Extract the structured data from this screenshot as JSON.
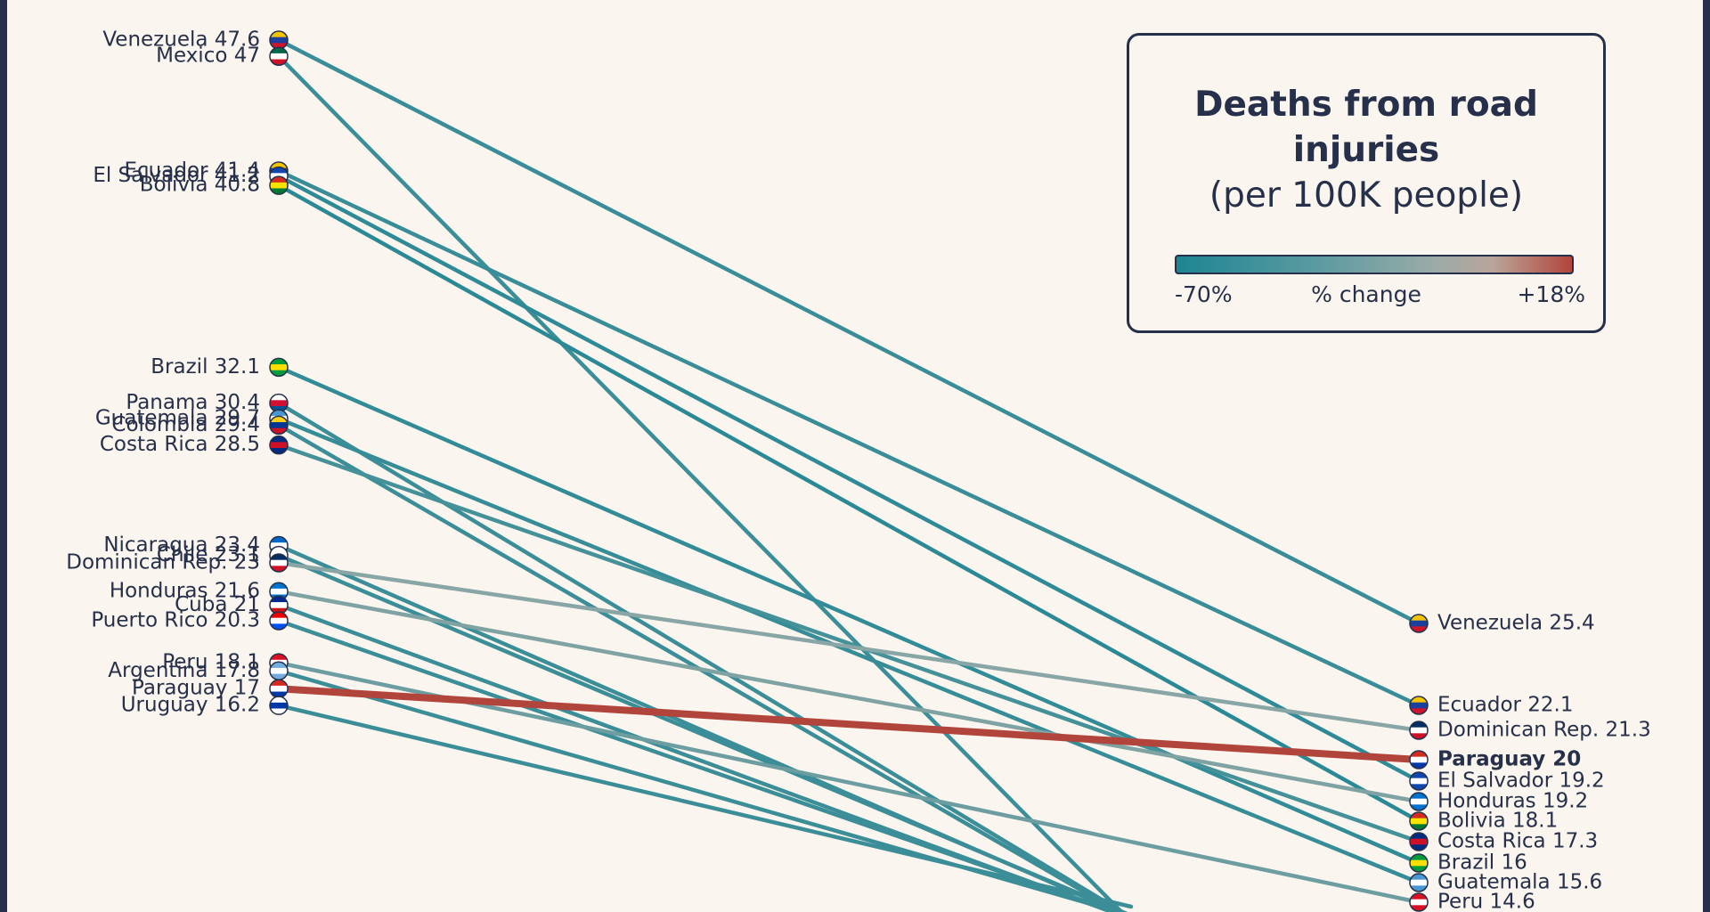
{
  "chart_data": {
    "type": "slope",
    "title": "Deaths from road injuries",
    "subtitle": "(per 100K people)",
    "legend": {
      "min_label": "-70%",
      "center_label": "% change",
      "max_label": "+18%",
      "color_low": "#1d8593",
      "color_mid": "#9aaba8",
      "color_high": "#b2453b"
    },
    "y_range": [
      13.6,
      49.3
    ],
    "highlight": "Paraguay",
    "series": [
      {
        "name": "Venezuela",
        "start": 47.6,
        "end": 25.4,
        "start_label": "Venezuela 47.6",
        "end_label": "Venezuela 25.4"
      },
      {
        "name": "Mexico",
        "start": 47,
        "end": null,
        "start_label": "Mexico 47",
        "end_label": ""
      },
      {
        "name": "Ecuador",
        "start": 41.4,
        "end": 22.1,
        "start_label": "Ecuador 41.4",
        "end_label": "Ecuador 22.1"
      },
      {
        "name": "El Salvador",
        "start": 41.2,
        "end": 19.2,
        "start_label": "El Salvador 41.2",
        "end_label": "El Salvador 19.2"
      },
      {
        "name": "Bolivia",
        "start": 40.8,
        "end": 18.1,
        "start_label": "Bolivia 40.8",
        "end_label": "Bolivia 18.1"
      },
      {
        "name": "Brazil",
        "start": 32.1,
        "end": 16,
        "start_label": "Brazil 32.1",
        "end_label": "Brazil 16"
      },
      {
        "name": "Panama",
        "start": 30.4,
        "end": null,
        "start_label": "Panama 30.4",
        "end_label": ""
      },
      {
        "name": "Guatemala",
        "start": 29.7,
        "end": 15.6,
        "start_label": "Guatemala 29.7",
        "end_label": "Guatemala 15.6"
      },
      {
        "name": "Colombia",
        "start": 29.4,
        "end": null,
        "start_label": "Colombia 29.4",
        "end_label": ""
      },
      {
        "name": "Costa Rica",
        "start": 28.5,
        "end": 17.3,
        "start_label": "Costa Rica 28.5",
        "end_label": "Costa Rica 17.3"
      },
      {
        "name": "Nicaragua",
        "start": 23.4,
        "end": null,
        "start_label": "Nicaragua 23.4",
        "end_label": ""
      },
      {
        "name": "Chile",
        "start": 23.1,
        "end": null,
        "start_label": "Chile 23.1",
        "end_label": ""
      },
      {
        "name": "Dominican Rep.",
        "start": 23,
        "end": 21.3,
        "start_label": "Dominican Rep. 23",
        "end_label": "Dominican Rep. 21.3"
      },
      {
        "name": "Honduras",
        "start": 21.6,
        "end": 19.2,
        "start_label": "Honduras 21.6",
        "end_label": "Honduras 19.2"
      },
      {
        "name": "Cuba",
        "start": 21,
        "end": null,
        "start_label": "Cuba 21",
        "end_label": ""
      },
      {
        "name": "Puerto Rico",
        "start": 20.3,
        "end": null,
        "start_label": "Puerto Rico 20.3",
        "end_label": ""
      },
      {
        "name": "Peru",
        "start": 18.1,
        "end": 14.6,
        "start_label": "Peru 18.1",
        "end_label": "Peru 14.6"
      },
      {
        "name": "Argentina",
        "start": 17.8,
        "end": null,
        "start_label": "Argentina 17.8",
        "end_label": ""
      },
      {
        "name": "Paraguay",
        "start": 17,
        "end": 20,
        "start_label": "Paraguay 17",
        "end_label": "Paraguay 20"
      },
      {
        "name": "Uruguay",
        "start": 16.2,
        "end": null,
        "start_label": "Uruguay 16.2",
        "end_label": ""
      }
    ]
  }
}
